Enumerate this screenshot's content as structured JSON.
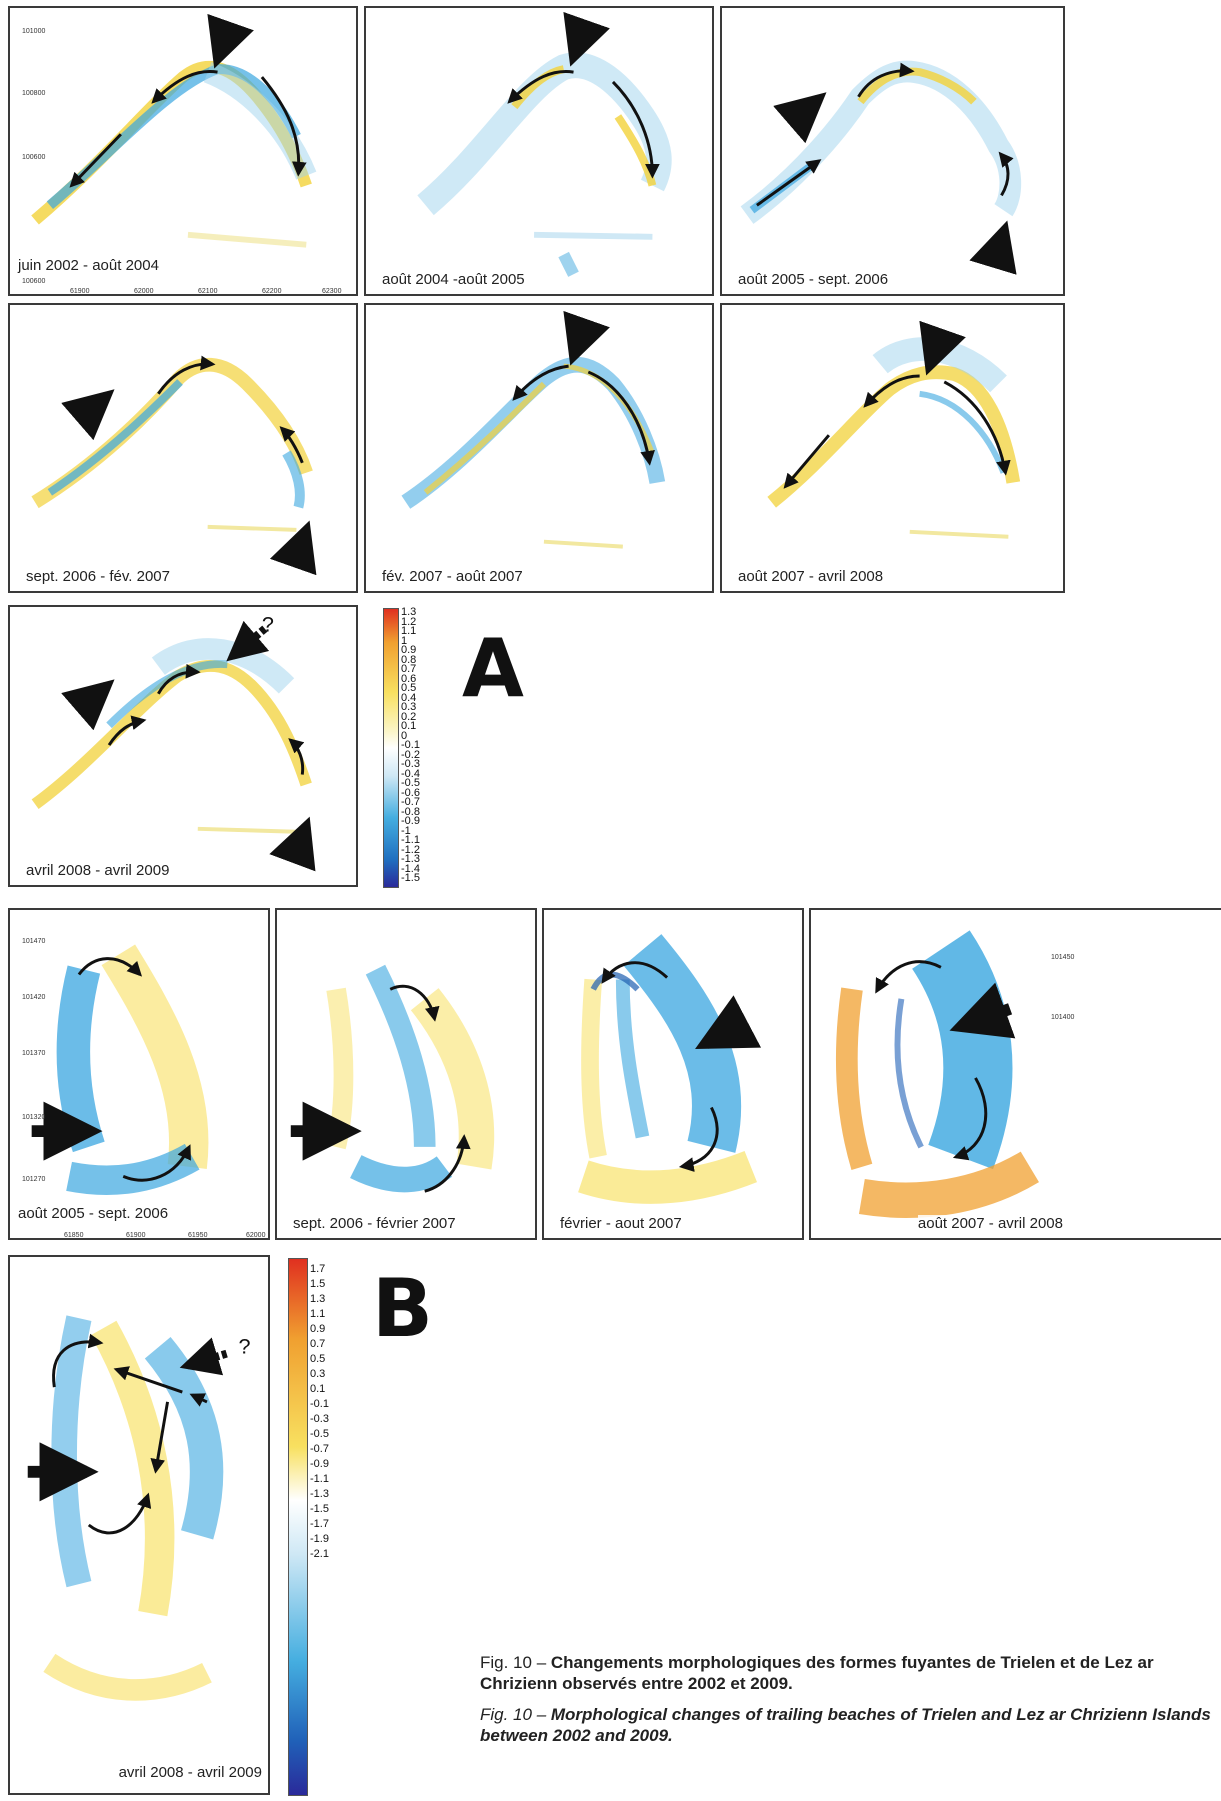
{
  "figure_a": {
    "letter": "A",
    "panels": [
      {
        "label": "juin 2002 - août 2004"
      },
      {
        "label": "août 2004 -août 2005"
      },
      {
        "label": "août 2005 - sept. 2006"
      },
      {
        "label": "sept. 2006 - fév. 2007"
      },
      {
        "label": "fév. 2007 - août 2007"
      },
      {
        "label": "août 2007 - avril 2008"
      },
      {
        "label": "avril 2008 - avril 2009"
      }
    ],
    "y_ticks": [
      "101000",
      "100800",
      "100600",
      "100600"
    ],
    "x_ticks": [
      "61900",
      "62000",
      "62100",
      "62200",
      "62300"
    ],
    "question_mark": "?",
    "scale": [
      "1.3",
      "1.2",
      "1.1",
      "1",
      "0.9",
      "0.8",
      "0.7",
      "0.6",
      "0.5",
      "0.4",
      "0.3",
      "0.2",
      "0.1",
      "0",
      "-0.1",
      "-0.2",
      "-0.3",
      "-0.4",
      "-0.5",
      "-0.6",
      "-0.7",
      "-0.8",
      "-0.9",
      "-1",
      "-1.1",
      "-1.2",
      "-1.3",
      "-1.4",
      "-1.5"
    ]
  },
  "figure_b": {
    "letter": "B",
    "panels": [
      {
        "label": "août 2005 - sept. 2006"
      },
      {
        "label": "sept. 2006 - février 2007"
      },
      {
        "label": "février - aout 2007"
      },
      {
        "label": "août 2007 - avril 2008"
      },
      {
        "label": "avril 2008 - avril 2009"
      }
    ],
    "y_ticks": [
      "101470",
      "101420",
      "101370",
      "101320",
      "101270"
    ],
    "x_ticks": [
      "61850",
      "61900",
      "61950",
      "62000"
    ],
    "y_ticks_right": [
      "101450",
      "101400"
    ],
    "question_mark": "?",
    "scale": [
      "1.7",
      "1.5",
      "1.3",
      "1.1",
      "0.9",
      "0.7",
      "0.5",
      "0.3",
      "0.1",
      "-0.1",
      "-0.3",
      "-0.5",
      "-0.7",
      "-0.9",
      "-1.1",
      "-1.3",
      "-1.5",
      "-1.7",
      "-1.9",
      "-2.1"
    ]
  },
  "caption": {
    "fr_label": "Fig. 10 –",
    "fr_text": "Changements morphologiques des formes fuyantes de Trielen et de Lez ar Chrizienn observés entre 2002 et 2009.",
    "en_label": "Fig. 10 –",
    "en_text": "Morphological changes of trailing beaches of Trielen and Lez ar Chrizienn Islands between 2002 and 2009."
  },
  "colors": {
    "erosion": "#3aa6e0",
    "accretion": "#f2d23a",
    "strong_accretion": "#e8a020",
    "frame": "#3a3a3a"
  }
}
